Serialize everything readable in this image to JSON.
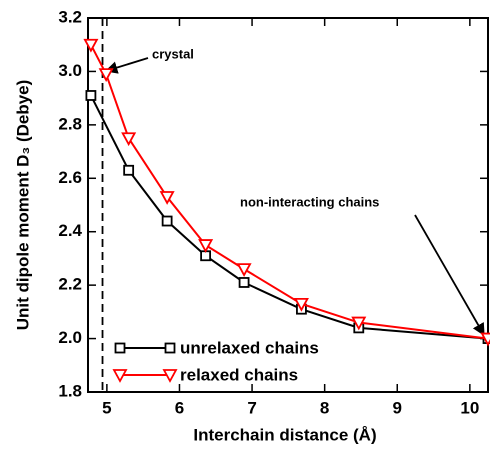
{
  "chart_data": {
    "type": "line",
    "xlabel": "Interchain distance (Å)",
    "ylabel": "Unit dipole moment D₃ (Debye)",
    "annotations": [
      "crystal",
      "non-interacting chains"
    ],
    "vline": 4.94,
    "series": [
      {
        "name": "unrelaxed chains",
        "color": "#000000",
        "marker": "square",
        "x": [
          4.78,
          5.3,
          5.83,
          6.36,
          6.89,
          7.68,
          8.47,
          10.25
        ],
        "values": [
          2.91,
          2.63,
          2.44,
          2.31,
          2.21,
          2.11,
          2.04,
          2.0
        ]
      },
      {
        "name": "relaxed chains",
        "color": "#ff0000",
        "marker": "triangle-down",
        "x": [
          4.78,
          4.99,
          5.3,
          5.83,
          6.36,
          6.89,
          7.68,
          8.47,
          10.25
        ],
        "values": [
          3.1,
          2.99,
          2.75,
          2.53,
          2.35,
          2.26,
          2.13,
          2.06,
          2.0
        ]
      }
    ],
    "xlim": [
      4.74,
      10.25
    ],
    "xticks": [
      5,
      6,
      7,
      8,
      9,
      10
    ],
    "ylim": [
      1.8,
      3.2
    ],
    "yticks": [
      1.8,
      {
        "value": 2.0,
        "label": "2.0"
      },
      2.2,
      2.4,
      2.6,
      2.8,
      {
        "value": 3.0,
        "label": "3.0"
      },
      3.2
    ],
    "legend": "lower-left"
  }
}
